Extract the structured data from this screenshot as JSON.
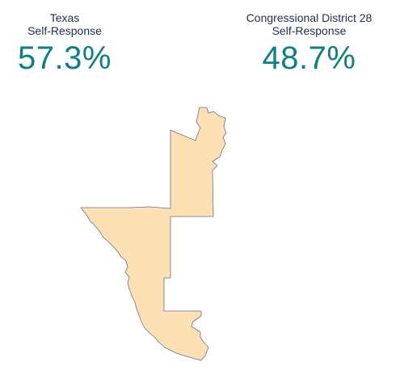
{
  "state_stat": {
    "line1": "Texas",
    "line2": "Self-Response",
    "value": "57.3%"
  },
  "district_stat": {
    "line1": "Congressional District 28",
    "line2": "Self-Response",
    "value": "48.7%"
  },
  "map": {
    "fill_color": "#fde0b4",
    "stroke_color": "#6b6f86"
  }
}
